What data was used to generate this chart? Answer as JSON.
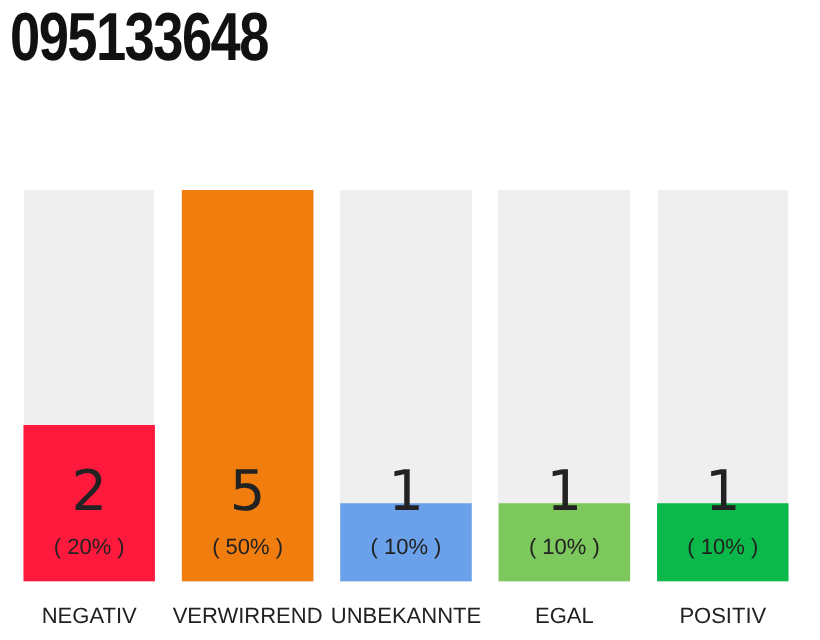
{
  "chart_data": {
    "type": "bar",
    "title": "095133648",
    "categories": [
      "NEGATIV",
      "VERWIRREND",
      "UNBEKANNTE",
      "EGAL",
      "POSITIV"
    ],
    "values": [
      2,
      5,
      1,
      1,
      1
    ],
    "colors": [
      "#ff1a3d",
      "#f07d0e",
      "#6aa1ea",
      "#7cc85c",
      "#0bb84a"
    ],
    "data_labels": true,
    "annotations": [
      {
        "text": "( 20% )",
        "x": "NEGATIV",
        "y": 0
      },
      {
        "text": "( 50% )",
        "x": "VERWIRREND",
        "y": 0
      },
      {
        "text": "( 10% )",
        "x": "UNBEKANNTE",
        "y": 0
      },
      {
        "text": "( 10% )",
        "x": "EGAL",
        "y": 0
      },
      {
        "text": "( 10% )",
        "x": "POSITIV",
        "y": 0
      }
    ]
  }
}
